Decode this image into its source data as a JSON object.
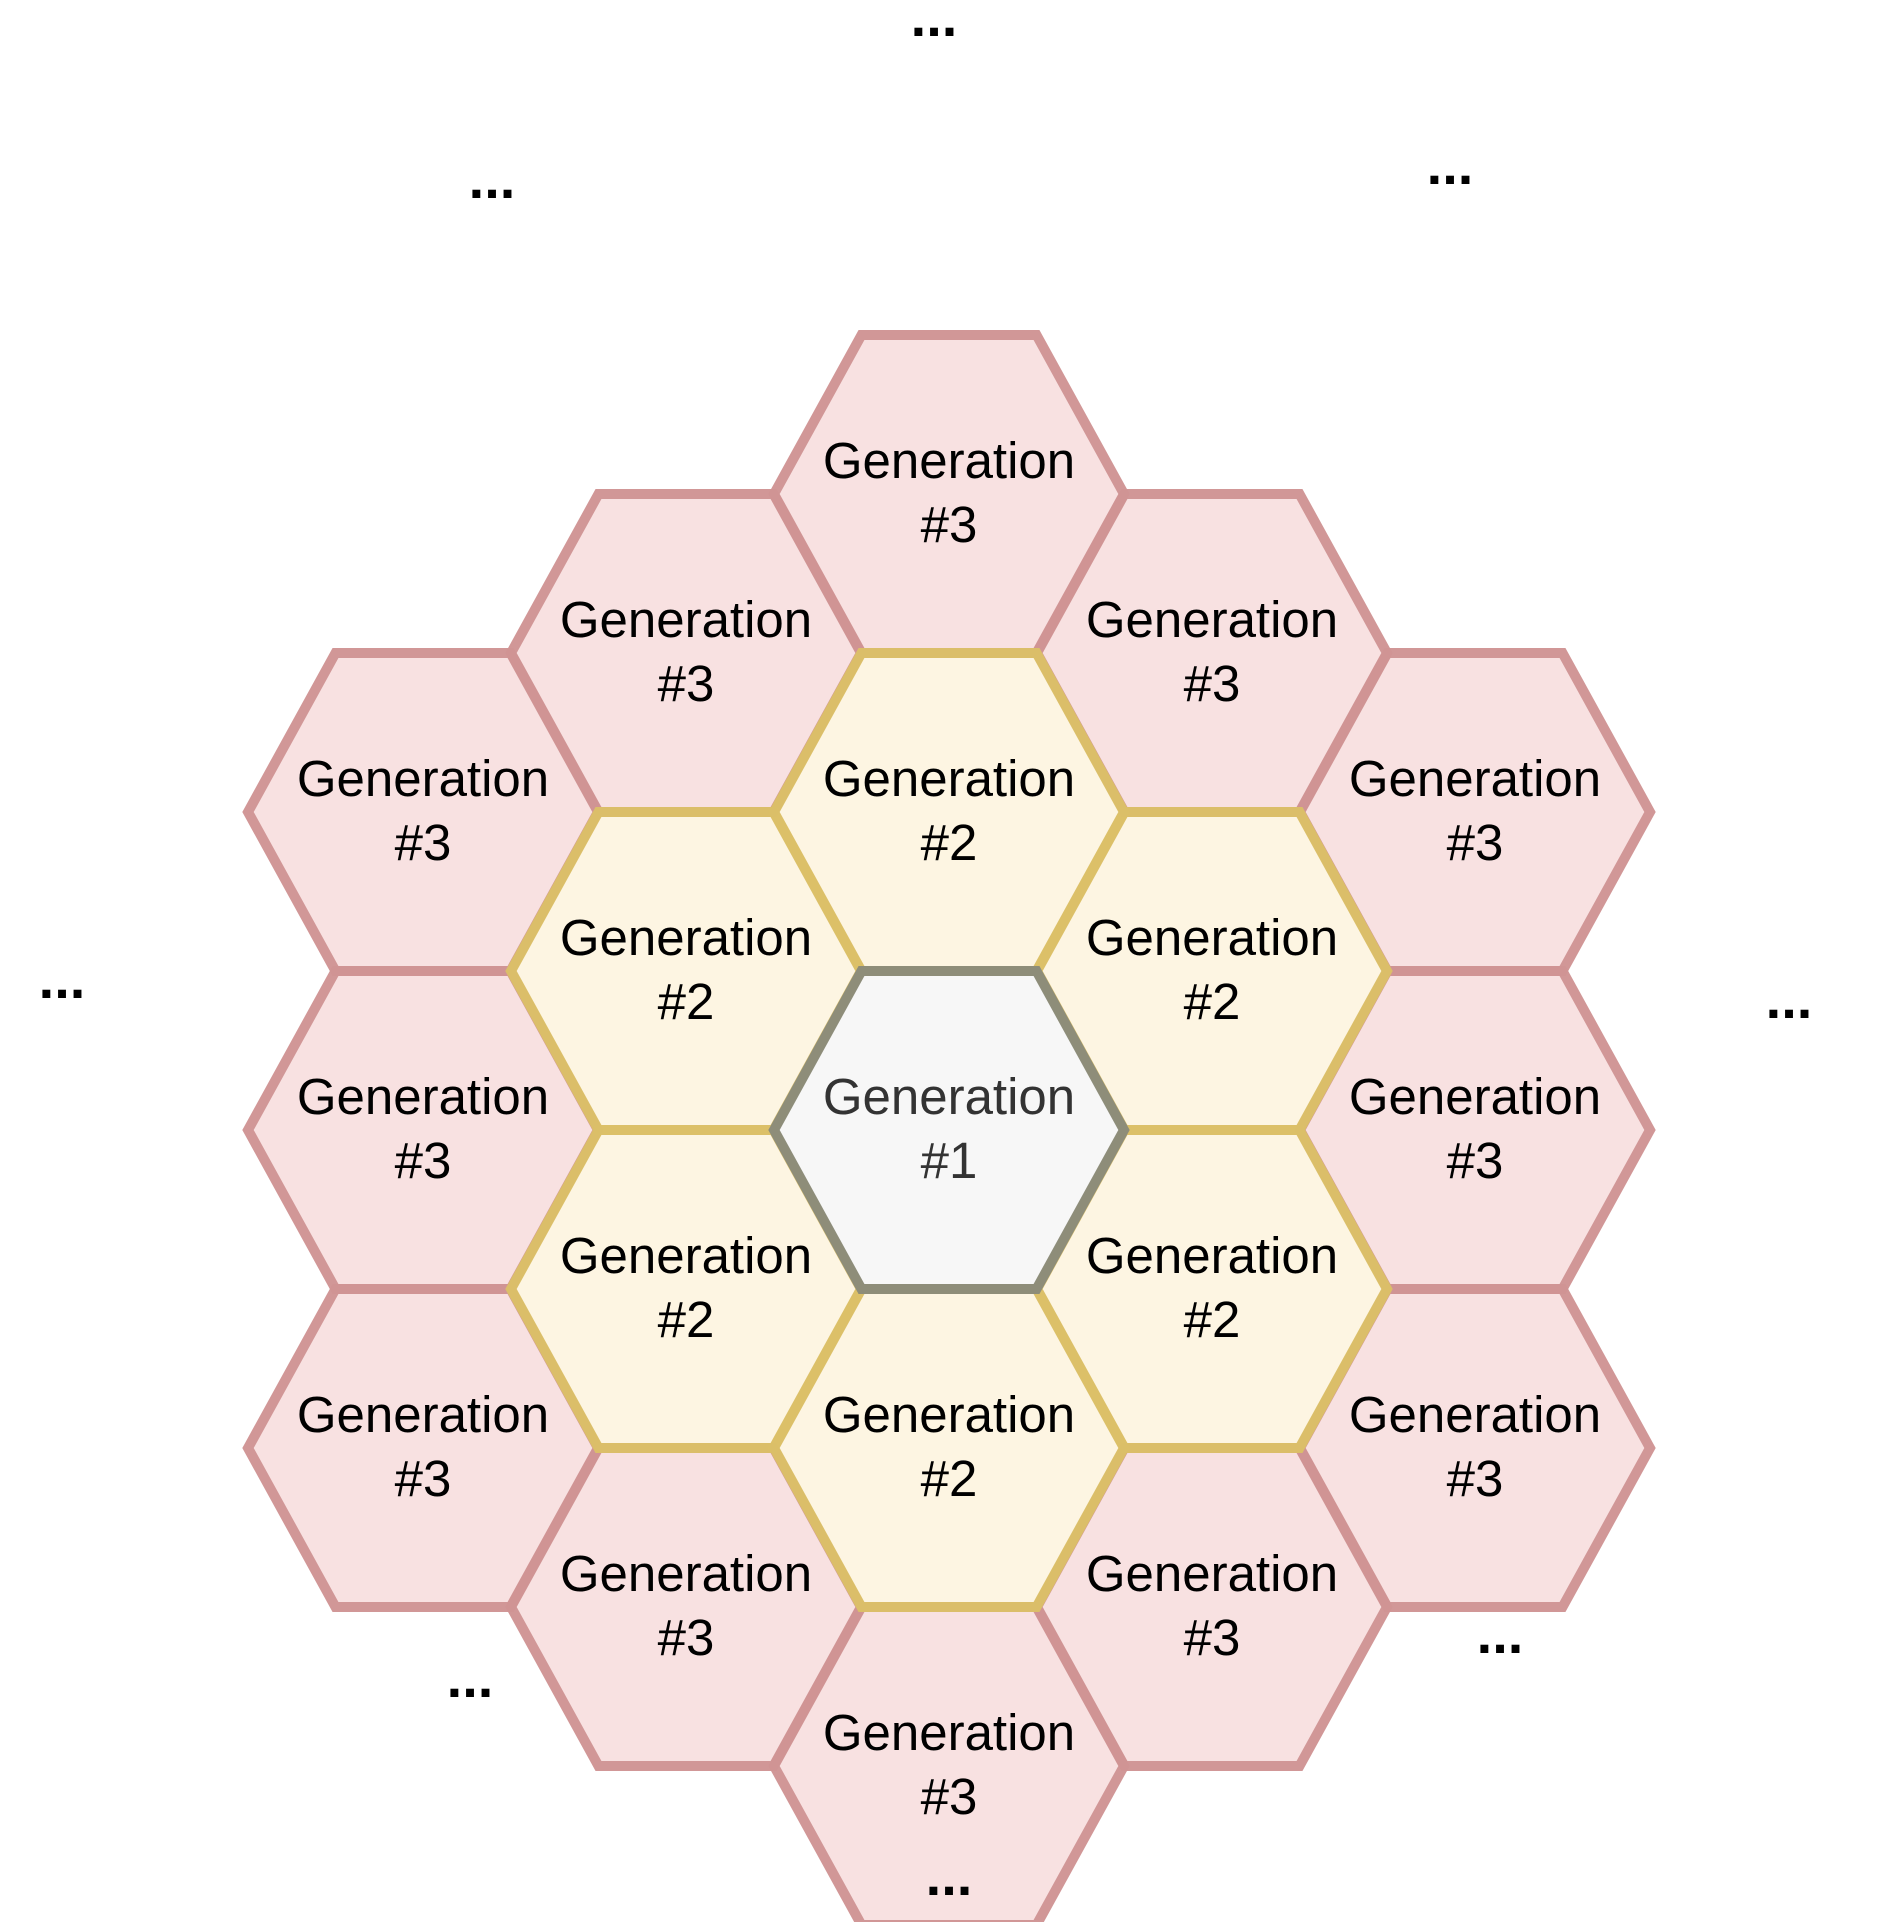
{
  "diagram": {
    "generation_styles": {
      "1": {
        "fill": "#f7f7f7",
        "stroke": "#8c8c7a"
      },
      "2": {
        "fill": "#fdf5e2",
        "stroke": "#dcc068"
      },
      "3": {
        "fill": "#f8e1e1",
        "stroke": "#d09494"
      }
    },
    "cells": [
      {
        "q": 0,
        "r": -3,
        "generation": 3,
        "line1": "Generation",
        "line2": "#3"
      },
      {
        "q": -1,
        "r": -2,
        "generation": 3,
        "line1": "Generation",
        "line2": "#3"
      },
      {
        "q": 1,
        "r": -3,
        "generation": 3,
        "line1": "Generation",
        "line2": "#3"
      },
      {
        "q": -2,
        "r": -1,
        "generation": 3,
        "line1": "Generation",
        "line2": "#3"
      },
      {
        "q": 2,
        "r": -3,
        "generation": 3,
        "line1": "Generation",
        "line2": "#3"
      },
      {
        "q": -2,
        "r": 0,
        "generation": 3,
        "line1": "Generation",
        "line2": "#3"
      },
      {
        "q": 2,
        "r": -2,
        "generation": 3,
        "line1": "Generation",
        "line2": "#3"
      },
      {
        "q": -2,
        "r": 1,
        "generation": 3,
        "line1": "Generation",
        "line2": "#3"
      },
      {
        "q": 2,
        "r": -1,
        "generation": 3,
        "line1": "Generation",
        "line2": "#3"
      },
      {
        "q": -1,
        "r": 1,
        "generation": 3,
        "line1": "Generation",
        "line2": "#3"
      },
      {
        "q": 1,
        "r": 0,
        "generation": 3,
        "line1": "Generation",
        "line2": "#3"
      },
      {
        "q": 0,
        "r": 1,
        "generation": 3,
        "line1": "Generation",
        "line2": "#3"
      },
      {
        "q": 0,
        "r": -2,
        "generation": 2,
        "line1": "Generation",
        "line2": "#2"
      },
      {
        "q": -1,
        "r": -1,
        "generation": 2,
        "line1": "Generation",
        "line2": "#2"
      },
      {
        "q": 1,
        "r": -2,
        "generation": 2,
        "line1": "Generation",
        "line2": "#2"
      },
      {
        "q": -1,
        "r": 0,
        "generation": 2,
        "line1": "Generation",
        "line2": "#2"
      },
      {
        "q": 1,
        "r": -1,
        "generation": 2,
        "line1": "Generation",
        "line2": "#2"
      },
      {
        "q": 0,
        "r": 0,
        "generation": 2,
        "line1": "Generation",
        "line2": "#2"
      },
      {
        "q": 0,
        "r": -1,
        "generation": 1,
        "line1": "Generation",
        "line2": "#1"
      }
    ],
    "ellipses": [
      {
        "id": "top",
        "text": "..."
      },
      {
        "id": "top-left",
        "text": "..."
      },
      {
        "id": "top-right",
        "text": "..."
      },
      {
        "id": "left",
        "text": "..."
      },
      {
        "id": "right",
        "text": "..."
      },
      {
        "id": "bottom-left",
        "text": "..."
      },
      {
        "id": "bottom-right",
        "text": "..."
      },
      {
        "id": "bottom",
        "text": "..."
      }
    ]
  }
}
